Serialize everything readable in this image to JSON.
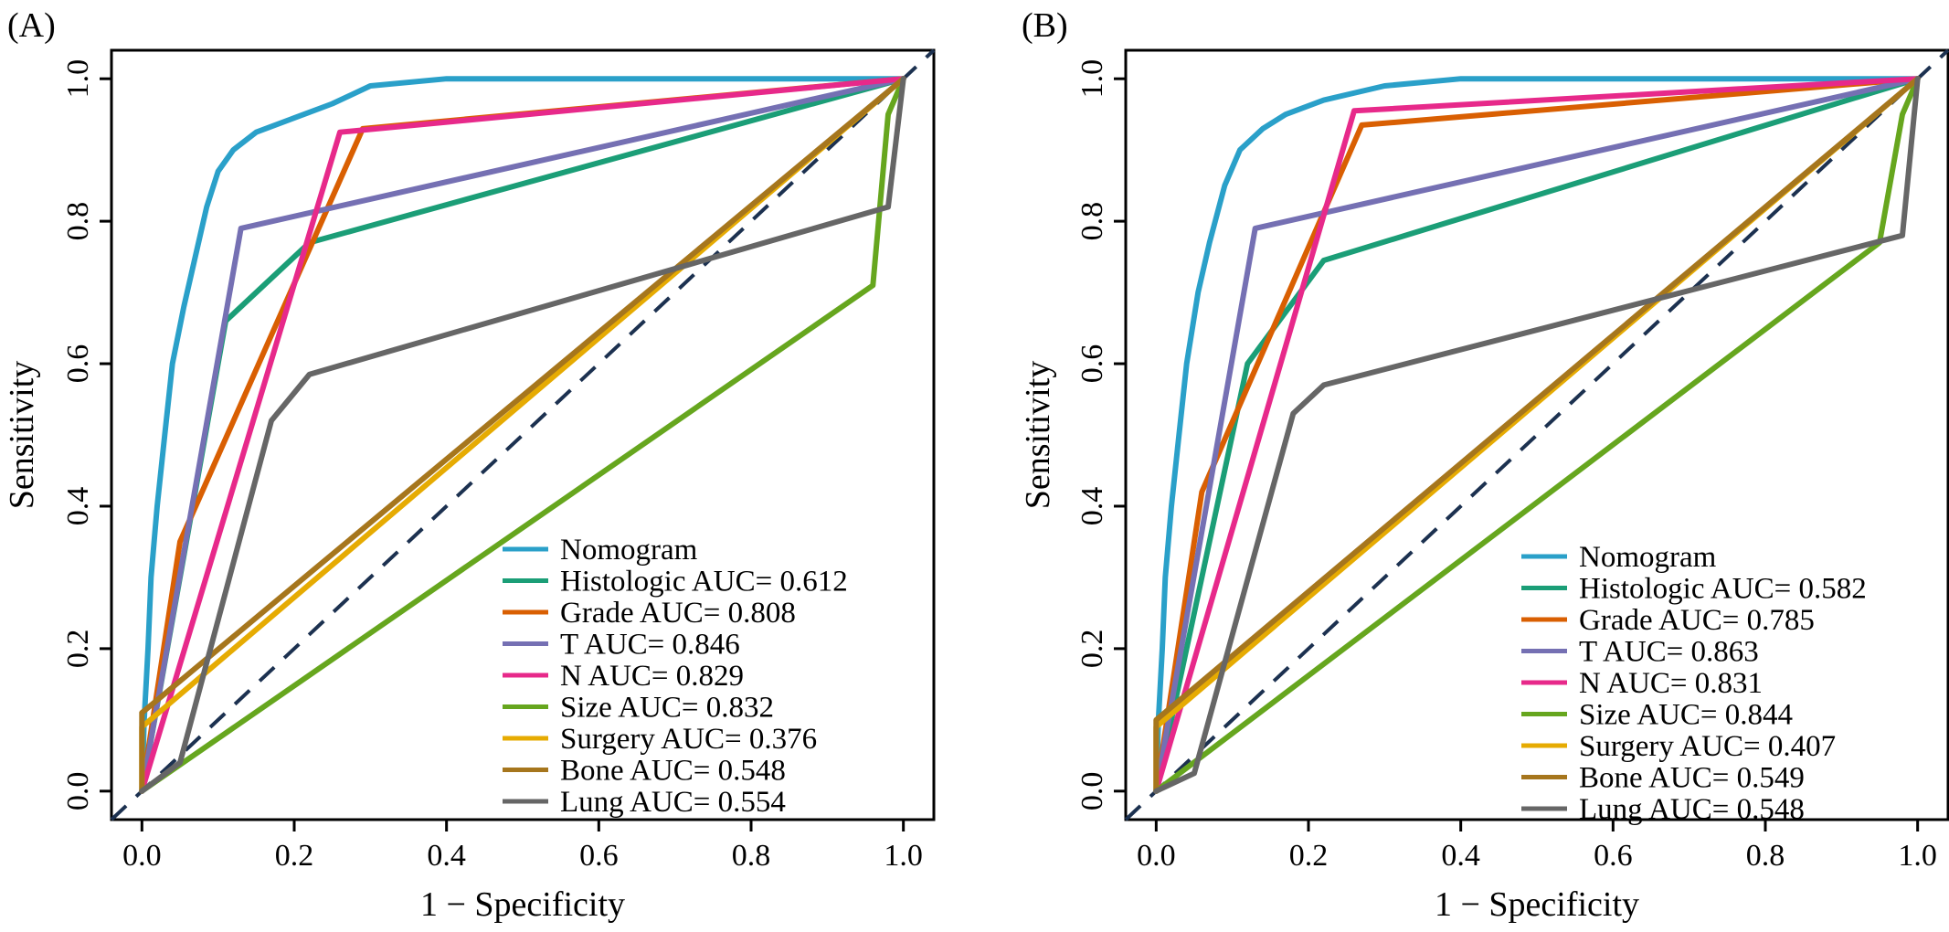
{
  "colors": {
    "Nomogram": "#2aa0c9",
    "Histologic": "#1b9e77",
    "Grade": "#d95f02",
    "T": "#7570b3",
    "N": "#e7298a",
    "Size": "#66a61e",
    "Surgery": "#e6ab02",
    "Bone": "#a6761d",
    "Lung": "#666666",
    "reference": "#1c3150"
  },
  "chart_data": [
    {
      "type": "line",
      "panel": "(A)",
      "xlabel": "1 − Specificity",
      "ylabel": "Sensitivity",
      "xlim": [
        -0.04,
        1.04
      ],
      "ylim": [
        -0.04,
        1.04
      ],
      "xticks": [
        "0.0",
        "0.2",
        "0.4",
        "0.6",
        "0.8",
        "1.0"
      ],
      "yticks": [
        "0.0",
        "0.2",
        "0.4",
        "0.6",
        "0.8",
        "1.0"
      ],
      "legend": [
        "Nomogram",
        "Histologic AUC= 0.612",
        "Grade AUC= 0.808",
        "T AUC= 0.846",
        "N AUC= 0.829",
        "Size AUC= 0.832",
        "Surgery AUC= 0.376",
        "Bone AUC= 0.548",
        "Lung AUC= 0.554"
      ],
      "series": [
        {
          "name": "Nomogram",
          "points": [
            [
              0,
              0
            ],
            [
              0.003,
              0.1
            ],
            [
              0.008,
              0.2
            ],
            [
              0.012,
              0.3
            ],
            [
              0.02,
              0.4
            ],
            [
              0.03,
              0.5
            ],
            [
              0.04,
              0.6
            ],
            [
              0.055,
              0.68
            ],
            [
              0.07,
              0.75
            ],
            [
              0.085,
              0.82
            ],
            [
              0.1,
              0.87
            ],
            [
              0.12,
              0.9
            ],
            [
              0.15,
              0.925
            ],
            [
              0.2,
              0.945
            ],
            [
              0.25,
              0.965
            ],
            [
              0.3,
              0.99
            ],
            [
              0.4,
              1.0
            ],
            [
              1.0,
              1.0
            ]
          ]
        },
        {
          "name": "Histologic",
          "points": [
            [
              0,
              0
            ],
            [
              0.11,
              0.66
            ],
            [
              0.22,
              0.77
            ],
            [
              1.0,
              1.0
            ]
          ]
        },
        {
          "name": "Grade",
          "points": [
            [
              0,
              0
            ],
            [
              0.05,
              0.35
            ],
            [
              0.29,
              0.93
            ],
            [
              1.0,
              1.0
            ]
          ]
        },
        {
          "name": "T",
          "points": [
            [
              0,
              0
            ],
            [
              0.13,
              0.79
            ],
            [
              1.0,
              1.0
            ]
          ]
        },
        {
          "name": "N",
          "points": [
            [
              0,
              0
            ],
            [
              0.26,
              0.925
            ],
            [
              1.0,
              1.0
            ]
          ]
        },
        {
          "name": "Size",
          "points": [
            [
              0,
              0
            ],
            [
              0.96,
              0.71
            ],
            [
              0.98,
              0.95
            ],
            [
              1.0,
              1.0
            ]
          ]
        },
        {
          "name": "Surgery",
          "points": [
            [
              0,
              0
            ],
            [
              0,
              0.09
            ],
            [
              1.0,
              1.0
            ]
          ]
        },
        {
          "name": "Bone",
          "points": [
            [
              0,
              0
            ],
            [
              0,
              0.11
            ],
            [
              1.0,
              1.0
            ]
          ]
        },
        {
          "name": "Lung",
          "points": [
            [
              0,
              0
            ],
            [
              0.05,
              0.04
            ],
            [
              0.17,
              0.52
            ],
            [
              0.22,
              0.585
            ],
            [
              0.98,
              0.82
            ],
            [
              1.0,
              1.0
            ]
          ]
        }
      ]
    },
    {
      "type": "line",
      "panel": "(B)",
      "xlabel": "1 − Specificity",
      "ylabel": "Sensitivity",
      "xlim": [
        -0.04,
        1.04
      ],
      "ylim": [
        -0.04,
        1.04
      ],
      "xticks": [
        "0.0",
        "0.2",
        "0.4",
        "0.6",
        "0.8",
        "1.0"
      ],
      "yticks": [
        "0.0",
        "0.2",
        "0.4",
        "0.6",
        "0.8",
        "1.0"
      ],
      "legend": [
        "Nomogram",
        "Histologic AUC= 0.582",
        "Grade AUC= 0.785",
        "T AUC= 0.863",
        "N AUC= 0.831",
        "Size AUC= 0.844",
        "Surgery AUC= 0.407",
        "Bone AUC= 0.549",
        "Lung AUC= 0.548"
      ],
      "series": [
        {
          "name": "Nomogram",
          "points": [
            [
              0,
              0
            ],
            [
              0.003,
              0.1
            ],
            [
              0.008,
              0.2
            ],
            [
              0.012,
              0.3
            ],
            [
              0.02,
              0.4
            ],
            [
              0.03,
              0.5
            ],
            [
              0.04,
              0.6
            ],
            [
              0.055,
              0.7
            ],
            [
              0.07,
              0.77
            ],
            [
              0.09,
              0.85
            ],
            [
              0.11,
              0.9
            ],
            [
              0.14,
              0.93
            ],
            [
              0.17,
              0.95
            ],
            [
              0.22,
              0.97
            ],
            [
              0.3,
              0.99
            ],
            [
              0.4,
              1.0
            ],
            [
              1.0,
              1.0
            ]
          ]
        },
        {
          "name": "Histologic",
          "points": [
            [
              0,
              0
            ],
            [
              0.12,
              0.6
            ],
            [
              0.22,
              0.745
            ],
            [
              1.0,
              1.0
            ]
          ]
        },
        {
          "name": "Grade",
          "points": [
            [
              0,
              0
            ],
            [
              0.06,
              0.42
            ],
            [
              0.27,
              0.935
            ],
            [
              1.0,
              1.0
            ]
          ]
        },
        {
          "name": "T",
          "points": [
            [
              0,
              0
            ],
            [
              0.13,
              0.79
            ],
            [
              1.0,
              1.0
            ]
          ]
        },
        {
          "name": "N",
          "points": [
            [
              0,
              0
            ],
            [
              0.26,
              0.955
            ],
            [
              1.0,
              1.0
            ]
          ]
        },
        {
          "name": "Size",
          "points": [
            [
              0,
              0
            ],
            [
              0.95,
              0.77
            ],
            [
              0.98,
              0.95
            ],
            [
              1.0,
              1.0
            ]
          ]
        },
        {
          "name": "Surgery",
          "points": [
            [
              0,
              0
            ],
            [
              0,
              0.09
            ],
            [
              1.0,
              1.0
            ]
          ]
        },
        {
          "name": "Bone",
          "points": [
            [
              0,
              0
            ],
            [
              0,
              0.1
            ],
            [
              1.0,
              1.0
            ]
          ]
        },
        {
          "name": "Lung",
          "points": [
            [
              0,
              0
            ],
            [
              0.05,
              0.025
            ],
            [
              0.18,
              0.53
            ],
            [
              0.22,
              0.57
            ],
            [
              0.98,
              0.78
            ],
            [
              1.0,
              1.0
            ]
          ]
        }
      ]
    }
  ]
}
